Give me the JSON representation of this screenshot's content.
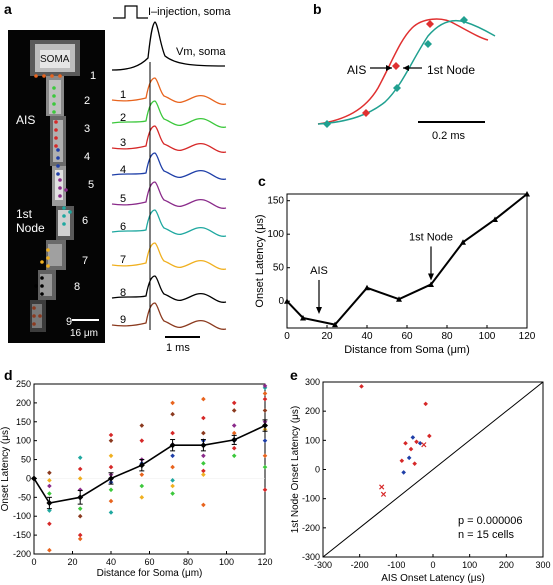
{
  "panels": {
    "a": {
      "label": "a",
      "stim_label": "I–injection, soma",
      "vm_label": "Vm, soma",
      "soma_label": "SOMA",
      "ais_label": "AIS",
      "node_label_1": "1st",
      "node_label_2": "Node",
      "site_numbers": [
        "1",
        "2",
        "3",
        "4",
        "5",
        "6",
        "7",
        "8",
        "9"
      ],
      "trace_numbers": [
        "1",
        "2",
        "3",
        "4",
        "5",
        "6",
        "7",
        "8",
        "9"
      ],
      "scale_image": "16 μm",
      "scale_time": "1 ms",
      "trace_colors": [
        "#e8641e",
        "#3cc83c",
        "#d62828",
        "#1f3fa8",
        "#8a2b8a",
        "#1fa8a0",
        "#f0b020",
        "#000000",
        "#8b3a1f"
      ]
    },
    "b": {
      "label": "b",
      "ais_label": "AIS",
      "node_label": "1st Node",
      "scale_label": "0.2 ms",
      "colors": {
        "ais": "#e03030",
        "node": "#20a090"
      }
    },
    "c": {
      "label": "c"
    },
    "d": {
      "label": "d"
    },
    "e": {
      "label": "e",
      "stat_p": "p = 0.000006",
      "stat_n": "n = 15 cells"
    }
  },
  "chart_data": [
    {
      "panel": "c",
      "type": "line",
      "xlabel": "Distance from Soma (μm)",
      "ylabel": "Onset Latency (μs)",
      "xlim": [
        0,
        120
      ],
      "ylim": [
        -40,
        160
      ],
      "xticks": [
        0,
        20,
        40,
        60,
        80,
        100,
        120
      ],
      "yticks": [
        0,
        50,
        100,
        150
      ],
      "x": [
        0,
        8,
        24,
        40,
        56,
        72,
        88,
        104,
        120
      ],
      "y": [
        0,
        -25,
        -35,
        20,
        3,
        25,
        88,
        122,
        160
      ],
      "annotations": [
        {
          "text": "AIS",
          "x": 16,
          "y": -25
        },
        {
          "text": "1st Node",
          "x": 72,
          "y": 25
        }
      ],
      "color": "#000000"
    },
    {
      "panel": "d",
      "type": "scatter",
      "xlabel": "Distance for Soma (μm)",
      "ylabel": "Onset Latency (μs)",
      "xlim": [
        0,
        120
      ],
      "ylim": [
        -200,
        250
      ],
      "xticks": [
        0,
        20,
        40,
        60,
        80,
        100,
        120
      ],
      "yticks": [
        -200,
        -150,
        -100,
        -50,
        0,
        50,
        100,
        150,
        200,
        250
      ],
      "mean": {
        "x": [
          0,
          8,
          24,
          40,
          56,
          72,
          88,
          104,
          120
        ],
        "y": [
          0,
          -65,
          -50,
          0,
          35,
          88,
          88,
          102,
          140
        ],
        "err": [
          0,
          15,
          18,
          15,
          15,
          15,
          15,
          12,
          15
        ]
      },
      "points": [
        [
          8,
          -190,
          "#e8641e"
        ],
        [
          8,
          -120,
          "#d62828"
        ],
        [
          8,
          -65,
          "#1f3fa8"
        ],
        [
          8,
          -40,
          "#3cc83c"
        ],
        [
          8,
          -20,
          "#8a2b8a"
        ],
        [
          8,
          -5,
          "#f0b020"
        ],
        [
          8,
          15,
          "#8b3a1f"
        ],
        [
          8,
          -85,
          "#1fa8a0"
        ],
        [
          24,
          -160,
          "#e8641e"
        ],
        [
          24,
          -150,
          "#d62828"
        ],
        [
          24,
          -100,
          "#8b3a1f"
        ],
        [
          24,
          -80,
          "#3cc83c"
        ],
        [
          24,
          -50,
          "#1f3fa8"
        ],
        [
          24,
          -30,
          "#8a2b8a"
        ],
        [
          24,
          0,
          "#f0b020"
        ],
        [
          24,
          25,
          "#d62828"
        ],
        [
          24,
          55,
          "#1fa8a0"
        ],
        [
          40,
          -60,
          "#e8641e"
        ],
        [
          40,
          -30,
          "#3cc83c"
        ],
        [
          40,
          -10,
          "#1f3fa8"
        ],
        [
          40,
          10,
          "#8a2b8a"
        ],
        [
          40,
          30,
          "#d62828"
        ],
        [
          40,
          60,
          "#f0b020"
        ],
        [
          40,
          100,
          "#8b3a1f"
        ],
        [
          40,
          115,
          "#d62828"
        ],
        [
          40,
          -90,
          "#1fa8a0"
        ],
        [
          56,
          -20,
          "#3cc83c"
        ],
        [
          56,
          10,
          "#e8641e"
        ],
        [
          56,
          40,
          "#1f3fa8"
        ],
        [
          56,
          50,
          "#8a2b8a"
        ],
        [
          56,
          100,
          "#d62828"
        ],
        [
          56,
          140,
          "#8b3a1f"
        ],
        [
          56,
          -50,
          "#f0b020"
        ],
        [
          72,
          -40,
          "#3cc83c"
        ],
        [
          72,
          -20,
          "#f0b020"
        ],
        [
          72,
          30,
          "#e8641e"
        ],
        [
          72,
          60,
          "#1f3fa8"
        ],
        [
          72,
          90,
          "#8a2b8a"
        ],
        [
          72,
          120,
          "#d62828"
        ],
        [
          72,
          170,
          "#8b3a1f"
        ],
        [
          72,
          200,
          "#e8641e"
        ],
        [
          72,
          -5,
          "#1fa8a0"
        ],
        [
          88,
          -70,
          "#e8641e"
        ],
        [
          88,
          20,
          "#d62828"
        ],
        [
          88,
          40,
          "#3cc83c"
        ],
        [
          88,
          60,
          "#8a2b8a"
        ],
        [
          88,
          100,
          "#1f3fa8"
        ],
        [
          88,
          120,
          "#8b3a1f"
        ],
        [
          88,
          160,
          "#d62828"
        ],
        [
          88,
          210,
          "#e8641e"
        ],
        [
          88,
          10,
          "#f0b020"
        ],
        [
          104,
          60,
          "#3cc83c"
        ],
        [
          104,
          80,
          "#d62828"
        ],
        [
          104,
          100,
          "#1f3fa8"
        ],
        [
          104,
          120,
          "#e8641e"
        ],
        [
          104,
          140,
          "#8a2b8a"
        ],
        [
          104,
          180,
          "#8b3a1f"
        ],
        [
          104,
          200,
          "#d62828"
        ],
        [
          120,
          -30,
          "#d62828"
        ],
        [
          120,
          30,
          "#3cc83c"
        ],
        [
          120,
          60,
          "#e8641e"
        ],
        [
          120,
          100,
          "#1f3fa8"
        ],
        [
          120,
          130,
          "#f0b020"
        ],
        [
          120,
          150,
          "#8a2b8a"
        ],
        [
          120,
          180,
          "#8b3a1f"
        ],
        [
          120,
          210,
          "#d62828"
        ],
        [
          120,
          240,
          "#1fa8a0"
        ],
        [
          120,
          245,
          "#8a2b8a"
        ],
        [
          120,
          225,
          "#e8641e"
        ]
      ]
    },
    {
      "panel": "e",
      "type": "scatter",
      "xlabel": "AIS Onset Latency (μs)",
      "ylabel": "1st Node Onset Latency (μs)",
      "xlim": [
        -300,
        300
      ],
      "ylim": [
        -300,
        300
      ],
      "xticks": [
        -300,
        -200,
        -100,
        0,
        100,
        200,
        300
      ],
      "yticks": [
        -300,
        -200,
        -100,
        0,
        100,
        200,
        300
      ],
      "identity_line": true,
      "points": [
        [
          -195,
          285,
          "#d62828",
          "d"
        ],
        [
          -20,
          225,
          "#d62828",
          "d"
        ],
        [
          -10,
          115,
          "#d62828",
          "d"
        ],
        [
          -55,
          110,
          "#1f3fa8",
          "d"
        ],
        [
          -75,
          90,
          "#d62828",
          "d"
        ],
        [
          -45,
          95,
          "#d62828",
          "d"
        ],
        [
          -35,
          90,
          "#1f3fa8",
          "d"
        ],
        [
          -60,
          70,
          "#d62828",
          "d"
        ],
        [
          -85,
          30,
          "#d62828",
          "d"
        ],
        [
          -65,
          40,
          "#1f3fa8",
          "d"
        ],
        [
          -50,
          20,
          "#d62828",
          "d"
        ],
        [
          -80,
          -10,
          "#1f3fa8",
          "d"
        ],
        [
          -25,
          85,
          "#d62828",
          "x"
        ],
        [
          -140,
          -60,
          "#d62828",
          "x"
        ],
        [
          -135,
          -85,
          "#d62828",
          "x"
        ]
      ]
    }
  ]
}
